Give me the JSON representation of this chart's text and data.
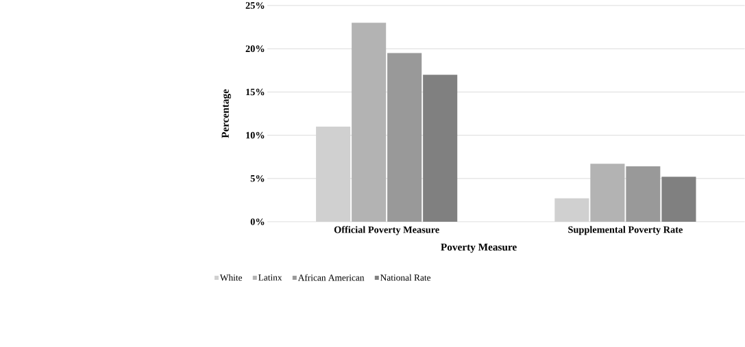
{
  "chart_data": {
    "type": "bar",
    "xlabel": "Poverty Measure",
    "ylabel": "Percentage",
    "categories": [
      "Official Poverty Measure",
      "Supplemental Poverty Rate"
    ],
    "series": [
      {
        "name": "White",
        "color": "#d0d0d0",
        "values": [
          11,
          2.7
        ]
      },
      {
        "name": "Latinx",
        "color": "#b3b3b3",
        "values": [
          23,
          6.7
        ]
      },
      {
        "name": "African American",
        "color": "#999999",
        "values": [
          19.5,
          6.4
        ]
      },
      {
        "name": "National Rate",
        "color": "#808080",
        "values": [
          17,
          5.2
        ]
      }
    ],
    "ylim": [
      0,
      25
    ],
    "yticks": [
      {
        "value": 0,
        "label": "0%"
      },
      {
        "value": 5,
        "label": "5%"
      },
      {
        "value": 10,
        "label": "10%"
      },
      {
        "value": 15,
        "label": "15%"
      },
      {
        "value": 20,
        "label": "20%"
      },
      {
        "value": 25,
        "label": "25%"
      }
    ],
    "grid": "y",
    "legend": "bottom left"
  }
}
